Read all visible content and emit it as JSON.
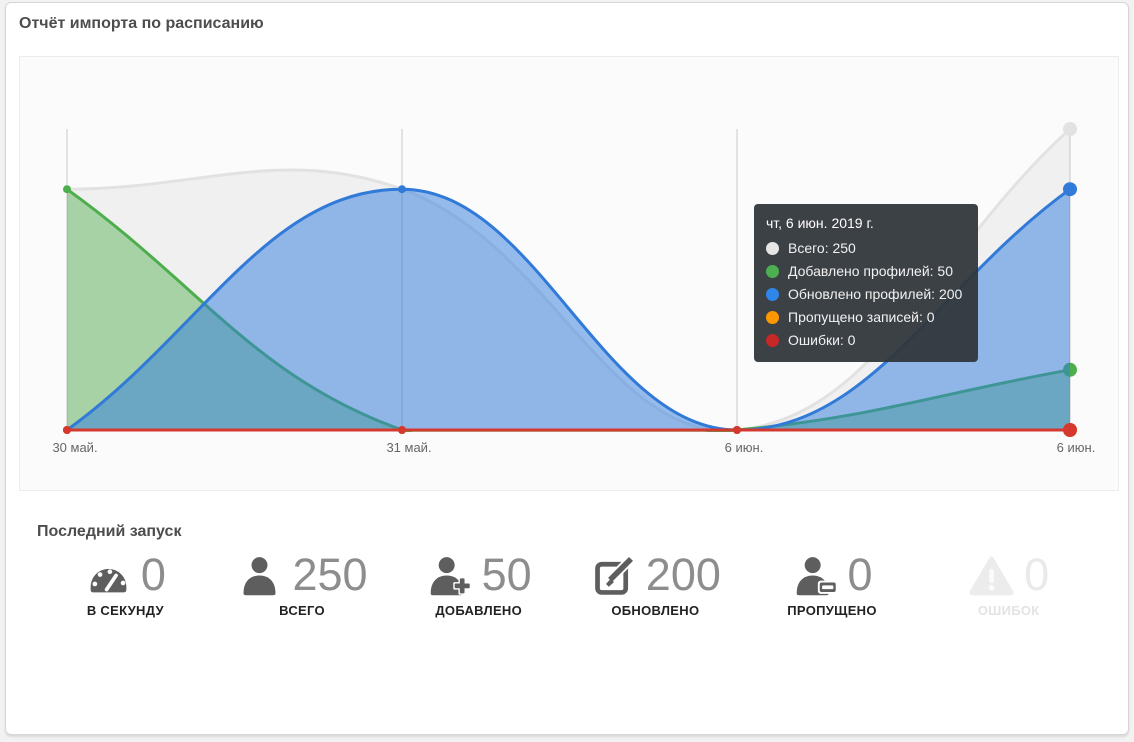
{
  "header": {
    "title": "Отчёт импорта по расписанию"
  },
  "chart": {
    "tooltip": {
      "title": "чт, 6 июн. 2019 г.",
      "rows": [
        {
          "label": "Всего",
          "value": 250,
          "text": "Всего: 250",
          "color": "#e6e6e6"
        },
        {
          "label": "Добавлено профилей",
          "value": 50,
          "text": "Добавлено профилей: 50",
          "color": "#4caf50"
        },
        {
          "label": "Обновлено профилей",
          "value": 200,
          "text": "Обновлено профилей: 200",
          "color": "#2e86e8"
        },
        {
          "label": "Пропущено записей",
          "value": 0,
          "text": "Пропущено записей: 0",
          "color": "#ff9800"
        },
        {
          "label": "Ошибки",
          "value": 0,
          "text": "Ошибки: 0",
          "color": "#c62828"
        }
      ]
    }
  },
  "chart_data": {
    "type": "area",
    "title": "Отчёт импорта по расписанию",
    "x_categories": [
      "30 май.",
      "31 май.",
      "6 июн.",
      "6 июн."
    ],
    "ylim": [
      0,
      250
    ],
    "grid": "vertical-only",
    "legend_position": "none",
    "hover_index": 3,
    "hover_date": "чт, 6 июн. 2019 г.",
    "series": [
      {
        "name": "Всего",
        "values": [
          200,
          200,
          0,
          250
        ],
        "color": "#e2e2e2",
        "fill": "rgba(130,130,130,0.09)"
      },
      {
        "name": "Добавлено профилей",
        "values": [
          200,
          0,
          0,
          50
        ],
        "color": "#4cae4c",
        "fill": "rgba(76,174,76,0.45)"
      },
      {
        "name": "Обновлено профилей",
        "values": [
          0,
          200,
          0,
          200
        ],
        "color": "#317ad7",
        "fill": "rgba(47,123,224,0.5)"
      },
      {
        "name": "Пропущено записей",
        "values": [
          0,
          0,
          0,
          0
        ],
        "color": "#ff9800",
        "fill": "none"
      },
      {
        "name": "Ошибки",
        "values": [
          0,
          0,
          0,
          0
        ],
        "color": "#d5382e",
        "fill": "none"
      }
    ]
  },
  "last_run": {
    "title": "Последний запуск",
    "stats": [
      {
        "value": "0",
        "label": "В СЕКУНДУ",
        "icon": "tachometer-icon",
        "muted": false
      },
      {
        "value": "250",
        "label": "ВСЕГО",
        "icon": "user-icon",
        "muted": false
      },
      {
        "value": "50",
        "label": "ДОБАВЛЕНО",
        "icon": "user-plus-icon",
        "muted": false
      },
      {
        "value": "200",
        "label": "ОБНОВЛЕНО",
        "icon": "edit-icon",
        "muted": false
      },
      {
        "value": "0",
        "label": "ПРОПУЩЕНО",
        "icon": "user-minus-icon",
        "muted": false
      },
      {
        "value": "0",
        "label": "ОШИБОК",
        "icon": "warning-icon",
        "muted": true
      }
    ]
  },
  "colors": {
    "card_bg": "#ffffff",
    "page_bg": "#f2f2f2",
    "panel_bg": "#fbfbfb",
    "tooltip_bg": "rgba(50,55,60,0.95)",
    "text_primary": "#4d4d4d",
    "stat_number": "#8d8d8d",
    "muted": "#eaeaea"
  }
}
